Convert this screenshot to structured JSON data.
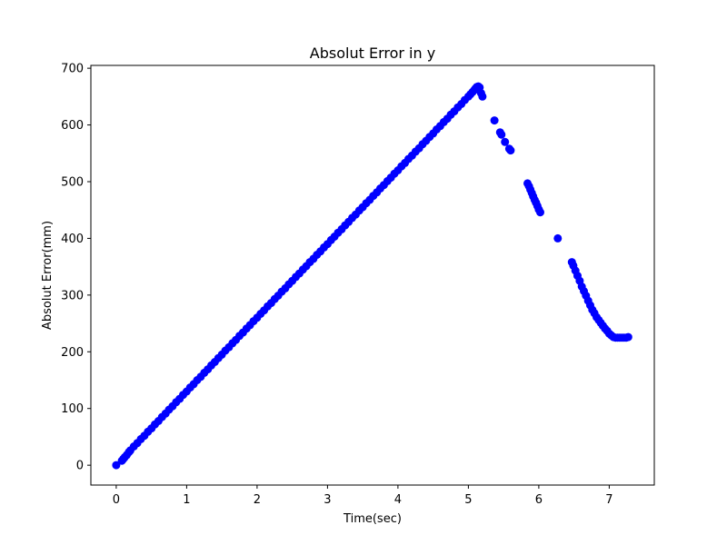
{
  "chart_data": {
    "type": "scatter",
    "title": "Absolut Error in y",
    "xlabel": "Time(sec)",
    "ylabel": "Absolut Error(mm)",
    "xlim": [
      -0.36,
      7.64
    ],
    "ylim": [
      -35,
      705
    ],
    "xticks": [
      "0",
      "1",
      "2",
      "3",
      "4",
      "5",
      "6",
      "7"
    ],
    "yticks": [
      "0",
      "100",
      "200",
      "300",
      "400",
      "500",
      "600",
      "700"
    ],
    "grid": false,
    "marker_color": "#0000ff",
    "series": [
      {
        "x": [
          0.0,
          0.08,
          0.1,
          0.12,
          0.15,
          0.18,
          0.2,
          0.25,
          0.3,
          0.35,
          0.4,
          0.45,
          0.5,
          0.55,
          0.6,
          0.65,
          0.7,
          0.75,
          0.8,
          0.85,
          0.9,
          0.95,
          1.0,
          1.05,
          1.1,
          1.15,
          1.2,
          1.25,
          1.3,
          1.35,
          1.4,
          1.45,
          1.5,
          1.55,
          1.6,
          1.65,
          1.7,
          1.75,
          1.8,
          1.85,
          1.9,
          1.95,
          2.0,
          2.05,
          2.1,
          2.15,
          2.2,
          2.25,
          2.3,
          2.35,
          2.4,
          2.45,
          2.5,
          2.55,
          2.6,
          2.65,
          2.7,
          2.75,
          2.8,
          2.85,
          2.9,
          2.95,
          3.0,
          3.05,
          3.1,
          3.15,
          3.2,
          3.25,
          3.3,
          3.35,
          3.4,
          3.45,
          3.5,
          3.55,
          3.6,
          3.65,
          3.7,
          3.75,
          3.8,
          3.85,
          3.9,
          3.95,
          4.0,
          4.05,
          4.1,
          4.15,
          4.2,
          4.25,
          4.3,
          4.35,
          4.4,
          4.45,
          4.5,
          4.55,
          4.6,
          4.65,
          4.7,
          4.75,
          4.8,
          4.85,
          4.9,
          4.95,
          5.0,
          5.03,
          5.06,
          5.08,
          5.1,
          5.12,
          5.14,
          5.16,
          5.18,
          5.2,
          5.37,
          5.45,
          5.47,
          5.52,
          5.58,
          5.6,
          5.84,
          5.86,
          5.88,
          5.9,
          5.92,
          5.94,
          5.96,
          5.98,
          6.0,
          6.02,
          6.27,
          6.47,
          6.49,
          6.52,
          6.55,
          6.58,
          6.61,
          6.64,
          6.67,
          6.7,
          6.73,
          6.76,
          6.79,
          6.82,
          6.85,
          6.88,
          6.91,
          6.94,
          6.97,
          7.0,
          7.03,
          7.06,
          7.09,
          7.12,
          7.15,
          7.18,
          7.21,
          7.24,
          7.27
        ],
        "y": [
          0,
          8,
          11,
          14,
          18,
          23,
          26,
          33,
          39,
          46,
          52,
          59,
          65,
          72,
          78,
          85,
          91,
          98,
          104,
          111,
          117,
          124,
          130,
          137,
          143,
          150,
          156,
          163,
          169,
          176,
          182,
          189,
          195,
          202,
          208,
          215,
          221,
          228,
          234,
          241,
          247,
          254,
          260,
          267,
          273,
          280,
          286,
          293,
          299,
          306,
          312,
          319,
          325,
          332,
          338,
          345,
          351,
          358,
          364,
          371,
          377,
          384,
          390,
          397,
          403,
          410,
          416,
          423,
          429,
          436,
          442,
          449,
          455,
          462,
          468,
          475,
          481,
          488,
          494,
          501,
          507,
          514,
          520,
          527,
          533,
          540,
          546,
          553,
          559,
          566,
          572,
          579,
          585,
          592,
          598,
          605,
          611,
          618,
          624,
          631,
          637,
          644,
          650,
          654,
          658,
          661,
          664,
          667,
          668,
          666,
          656,
          650,
          608,
          587,
          583,
          570,
          558,
          555,
          497,
          492,
          486,
          480,
          474,
          468,
          463,
          457,
          451,
          446,
          400,
          358,
          352,
          343,
          334,
          325,
          315,
          307,
          299,
          290,
          282,
          274,
          268,
          261,
          256,
          251,
          246,
          241,
          237,
          232,
          229,
          226,
          225,
          225,
          225,
          225,
          225,
          225,
          226
        ]
      }
    ]
  }
}
